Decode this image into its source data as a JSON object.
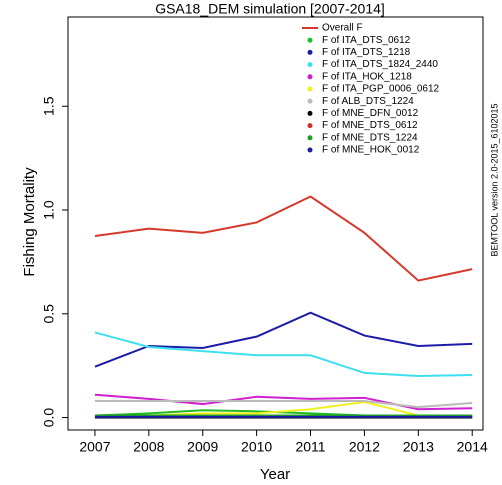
{
  "chart_data": {
    "type": "line",
    "title": "GSA18_DEM simulation [2007-2014]",
    "x_label": "Year",
    "y_label": "Fishing Mortality",
    "annotation": "BEMTOOL version 2.0-2015_6102015",
    "x": [
      2007,
      2008,
      2009,
      2010,
      2011,
      2012,
      2013,
      2014
    ],
    "xlim": [
      2006.5,
      2014.2
    ],
    "xticks": [
      2007,
      2008,
      2009,
      2010,
      2011,
      2012,
      2013,
      2014
    ],
    "ylim": [
      -0.06,
      1.93
    ],
    "yticks": [
      {
        "value": 0,
        "label": "0.0"
      },
      0.5,
      {
        "value": 1,
        "label": "1.0"
      },
      1.5
    ],
    "legend_position": "top-right",
    "series": [
      {
        "name": "Overall F",
        "color": "#d43a2a",
        "values": [
          0.875,
          0.91,
          0.89,
          0.94,
          1.065,
          0.89,
          0.66,
          0.715
        ]
      },
      {
        "name": "F of ITA_DTS_0612",
        "color": "#22bb22",
        "values": [
          0.01,
          0.02,
          0.035,
          0.03,
          0.02,
          0.01,
          0.01,
          0.01
        ]
      },
      {
        "name": "F of ITA_DTS_1218",
        "color": "#1c1ca8",
        "values": [
          0.245,
          0.345,
          0.335,
          0.39,
          0.505,
          0.395,
          0.345,
          0.355
        ]
      },
      {
        "name": "F of ITA_DTS_1824_2440",
        "color": "#3ee0f0",
        "values": [
          0.41,
          0.34,
          0.32,
          0.3,
          0.3,
          0.215,
          0.2,
          0.205
        ]
      },
      {
        "name": "F of ITA_HOK_1218",
        "color": "#d020d0",
        "values": [
          0.11,
          0.09,
          0.065,
          0.1,
          0.09,
          0.095,
          0.04,
          0.045
        ]
      },
      {
        "name": "F of ITA_PGP_0006_0612",
        "color": "#f0f020",
        "values": [
          0.005,
          0.01,
          0.02,
          0.02,
          0.04,
          0.075,
          0.01,
          0.01
        ]
      },
      {
        "name": "F of ALB_DTS_1224",
        "color": "#bbbbbb",
        "values": [
          0.08,
          0.08,
          0.08,
          0.08,
          0.08,
          0.08,
          0.05,
          0.07
        ]
      },
      {
        "name": "F of MNE_DFN_0012",
        "color": "#000000",
        "values": [
          0,
          0,
          0,
          0,
          0,
          0,
          0,
          0
        ]
      },
      {
        "name": "F of MNE_DTS_0612",
        "color": "#d42a2a",
        "values": [
          0.005,
          0.005,
          0.005,
          0.005,
          0.005,
          0.005,
          0.005,
          0.005
        ]
      },
      {
        "name": "F of MNE_DTS_1224",
        "color": "#22a022",
        "values": [
          0.01,
          0.01,
          0.01,
          0.01,
          0.01,
          0.01,
          0.01,
          0.01
        ]
      },
      {
        "name": "F of MNE_HOK_0012",
        "color": "#1c1ca8",
        "values": [
          0.003,
          0.003,
          0.003,
          0.003,
          0.003,
          0.003,
          0.003,
          0.003
        ]
      }
    ]
  }
}
